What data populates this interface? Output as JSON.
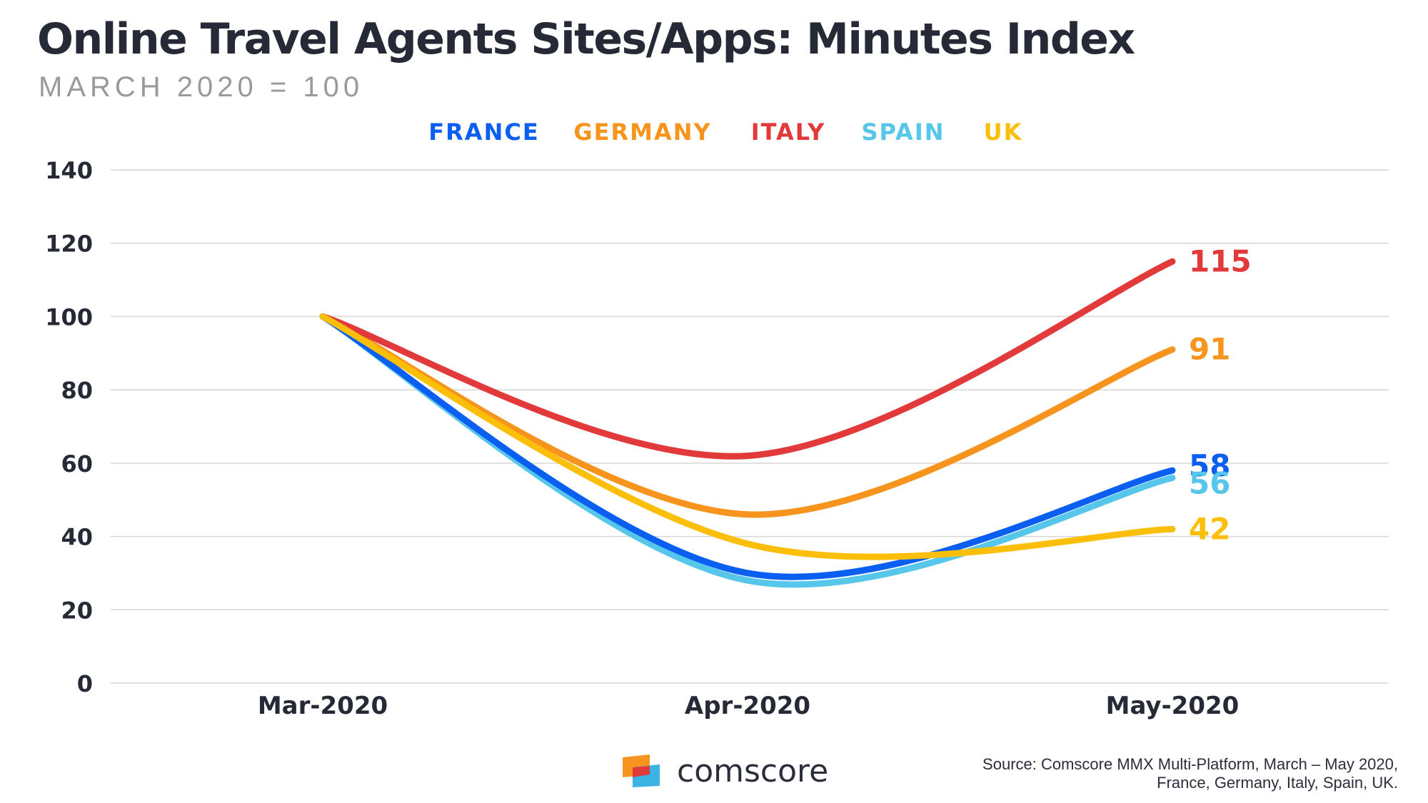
{
  "chart_data": {
    "type": "line",
    "title": "Online Travel Agents Sites/Apps: Minutes Index",
    "subtitle": "MARCH 2020 = 100",
    "categories": [
      "Mar-2020",
      "Apr-2020",
      "May-2020"
    ],
    "ylim": [
      0,
      140
    ],
    "yticks": [
      "0",
      "20",
      "40",
      "60",
      "80",
      "100",
      "120",
      "140"
    ],
    "xlabel": "",
    "ylabel": "",
    "grid": true,
    "legend_position": "top-center",
    "series": [
      {
        "name": "FRANCE",
        "color": "#0a5ff0",
        "values": [
          100,
          30,
          58
        ],
        "end_label": "58"
      },
      {
        "name": "GERMANY",
        "color": "#f7941d",
        "values": [
          100,
          46,
          91
        ],
        "end_label": "91"
      },
      {
        "name": "ITALY",
        "color": "#e2393a",
        "values": [
          100,
          62,
          115
        ],
        "end_label": "115"
      },
      {
        "name": "SPAIN",
        "color": "#56c6ea",
        "values": [
          100,
          28,
          56
        ],
        "end_label": "56"
      },
      {
        "name": "UK",
        "color": "#fbbf0a",
        "values": [
          100,
          38,
          42
        ],
        "end_label": "42"
      }
    ]
  },
  "brand": {
    "name": "comscore",
    "colors": {
      "orange": "#f7941d",
      "red": "#e2393a",
      "blue": "#3bb4e5"
    }
  },
  "source": {
    "line1": "Source: Comscore MMX Multi-Platform, March – May 2020,",
    "line2": "France, Germany, Italy, Spain, UK."
  }
}
